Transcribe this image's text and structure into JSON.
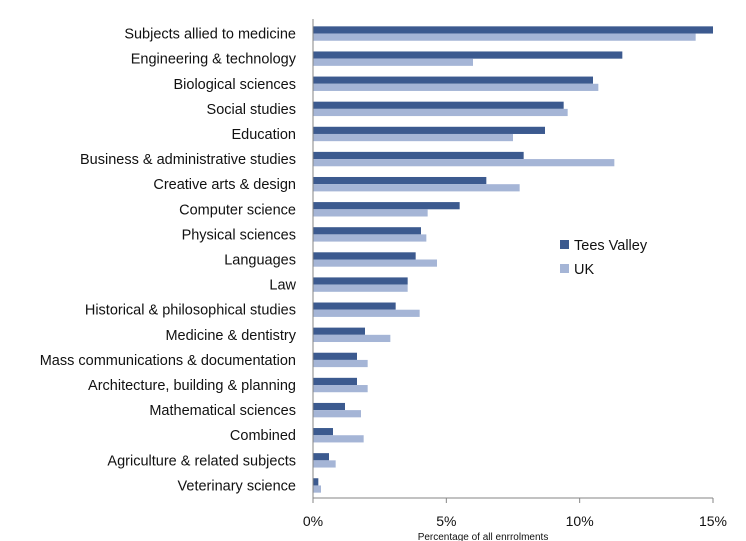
{
  "chart_data": {
    "type": "bar",
    "orientation": "horizontal",
    "title": "",
    "xlabel": "Percentage of all enrrolments",
    "ylabel": "",
    "xlim": [
      0,
      15
    ],
    "x_ticks": [
      "0%",
      "5%",
      "10%",
      "15%"
    ],
    "grid": false,
    "legend_position": "right",
    "categories": [
      "Subjects allied to medicine",
      "Engineering & technology",
      "Biological sciences",
      "Social studies",
      "Education",
      "Business & administrative studies",
      "Creative arts & design",
      "Computer science",
      "Physical sciences",
      "Languages",
      "Law",
      "Historical & philosophical studies",
      "Medicine & dentistry",
      "Mass communications & documentation",
      "Architecture, building & planning",
      "Mathematical sciences",
      "Combined",
      "Agriculture & related subjects",
      "Veterinary science"
    ],
    "series": [
      {
        "name": "Tees Valley",
        "color": "#3c5a8f",
        "values": [
          15.0,
          11.6,
          10.5,
          9.4,
          8.7,
          7.9,
          6.5,
          5.5,
          4.05,
          3.85,
          3.55,
          3.1,
          1.95,
          1.65,
          1.65,
          1.2,
          0.75,
          0.6,
          0.2
        ]
      },
      {
        "name": "UK",
        "color": "#a5b5d6",
        "values": [
          14.35,
          6.0,
          10.7,
          9.55,
          7.5,
          11.3,
          7.75,
          4.3,
          4.25,
          4.65,
          3.55,
          4.0,
          2.9,
          2.05,
          2.05,
          1.8,
          1.9,
          0.85,
          0.3
        ]
      }
    ]
  }
}
